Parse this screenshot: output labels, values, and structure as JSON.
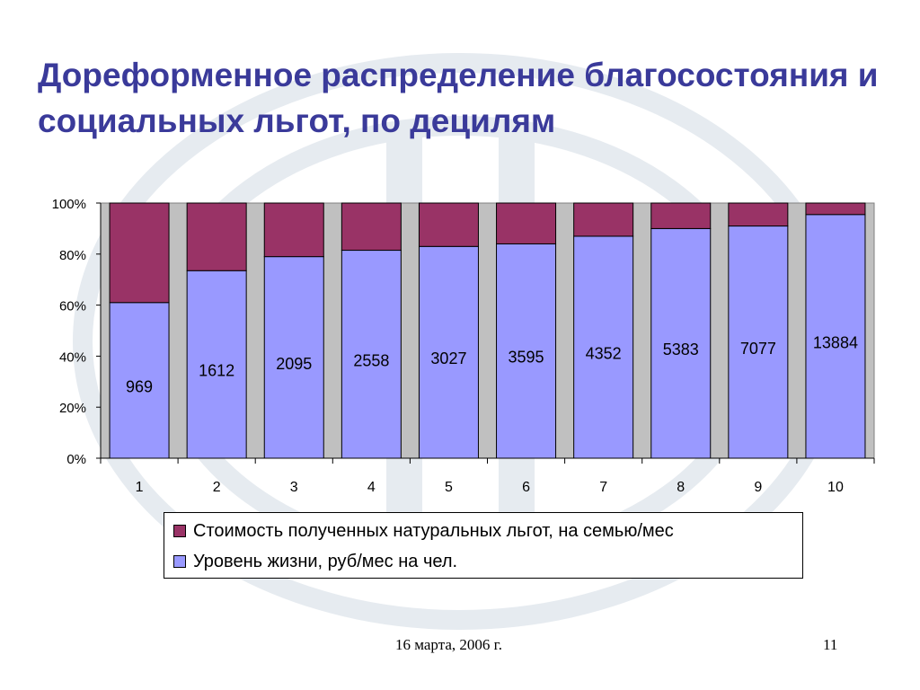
{
  "slide": {
    "title": "Дореформенное распределение благосостояния и социальных льгот, по децилям",
    "footer_date": "16 марта, 2006 г.",
    "page_number": "11"
  },
  "chart_data": {
    "type": "bar",
    "stacked": true,
    "percent_stacked": true,
    "categories": [
      "1",
      "2",
      "3",
      "4",
      "5",
      "6",
      "7",
      "8",
      "9",
      "10"
    ],
    "series": [
      {
        "name": "Уровень жизни, руб/мес на чел.",
        "color": "#9999ff",
        "percent": [
          61,
          73.5,
          79,
          81.5,
          83,
          84,
          87,
          90,
          91,
          95.5
        ],
        "data_labels": [
          "969",
          "1612",
          "2095",
          "2558",
          "3027",
          "3595",
          "4352",
          "5383",
          "7077",
          "13884"
        ]
      },
      {
        "name": "Стоимость полученных натуральных льгот, на семью/мес",
        "color": "#993366",
        "percent": [
          39,
          26.5,
          21,
          18.5,
          17,
          16,
          13,
          10,
          9,
          4.5
        ]
      }
    ],
    "y_ticks": [
      "0%",
      "20%",
      "40%",
      "60%",
      "80%",
      "100%"
    ],
    "ylim": [
      0,
      100
    ],
    "plot_background": "#c0c0c0",
    "legend_position": "bottom"
  }
}
